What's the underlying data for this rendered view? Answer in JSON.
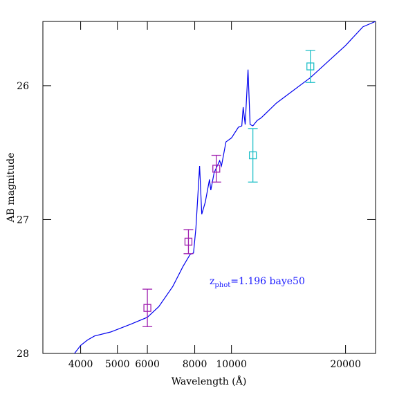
{
  "chart_data": {
    "type": "sed",
    "xlabel": "Wavelength (Å)",
    "ylabel": "AB magnitude",
    "xscale": "log",
    "y_inverted": true,
    "xlim": [
      3180,
      24000
    ],
    "ylim": [
      25.52,
      28
    ],
    "xticks": [
      4000,
      5000,
      6000,
      8000,
      10000,
      20000
    ],
    "yticks": [
      26,
      27,
      28
    ],
    "annotation": {
      "symbol": "z",
      "subscript": "phot",
      "text": "=1.196 baye50",
      "color": "#1a1aff"
    },
    "model": {
      "color": "#0000ee",
      "x": [
        3854,
        4000,
        4170,
        4350,
        4800,
        5440,
        6000,
        6430,
        7000,
        7450,
        7780,
        7940,
        8060,
        8240,
        8350,
        8530,
        8750,
        8820,
        9000,
        9310,
        9410,
        9670,
        10000,
        10430,
        10650,
        10740,
        10870,
        11060,
        11200,
        11390,
        11690,
        11980,
        13140,
        16150,
        20000,
        22230,
        24000
      ],
      "values": [
        28.0,
        27.94,
        27.9,
        27.87,
        27.84,
        27.78,
        27.73,
        27.65,
        27.5,
        27.35,
        27.26,
        27.25,
        27.06,
        26.6,
        26.96,
        26.87,
        26.7,
        26.78,
        26.65,
        26.56,
        26.6,
        26.42,
        26.39,
        26.31,
        26.3,
        26.16,
        26.29,
        25.88,
        26.29,
        26.3,
        26.26,
        26.24,
        26.13,
        25.94,
        25.7,
        25.56,
        25.52
      ]
    },
    "photometry": [
      {
        "color": "#a020b0",
        "x": [
          6000,
          7700,
          9120
        ],
        "values": [
          27.66,
          27.165,
          26.62
        ],
        "errors": [
          0.14,
          0.09,
          0.1
        ]
      },
      {
        "color": "#20c0c8",
        "x": [
          11390,
          16150
        ],
        "values": [
          26.52,
          25.856
        ],
        "errors": [
          0.2,
          0.12
        ]
      }
    ]
  }
}
